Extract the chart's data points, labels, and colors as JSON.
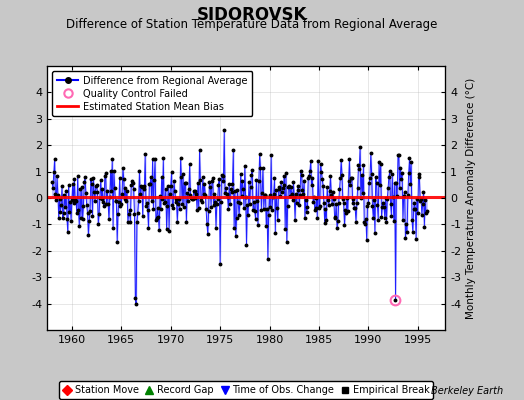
{
  "title": "SIDOROVSK",
  "subtitle": "Difference of Station Temperature Data from Regional Average",
  "ylabel": "Monthly Temperature Anomaly Difference (°C)",
  "xlabel_years": [
    1960,
    1965,
    1970,
    1975,
    1980,
    1985,
    1990,
    1995
  ],
  "xlim": [
    1957.5,
    1997.8
  ],
  "ylim": [
    -5,
    5
  ],
  "yticks": [
    -4,
    -3,
    -2,
    -1,
    0,
    1,
    2,
    3,
    4
  ],
  "bias_value": 0.05,
  "line_color": "#0000FF",
  "line_alpha": 0.85,
  "dot_color": "#000000",
  "bias_color": "#FF0000",
  "qc_fail_color": "#FF69B4",
  "background_color": "#C8C8C8",
  "plot_bg_color": "#FFFFFF",
  "title_fontsize": 12,
  "subtitle_fontsize": 8.5,
  "legend1_labels": [
    "Difference from Regional Average",
    "Quality Control Failed",
    "Estimated Station Mean Bias"
  ],
  "legend2_labels": [
    "Station Move",
    "Record Gap",
    "Time of Obs. Change",
    "Empirical Break"
  ],
  "watermark": "Berkeley Earth",
  "seed": 42,
  "n_months": 456,
  "start_year": 1958.0
}
